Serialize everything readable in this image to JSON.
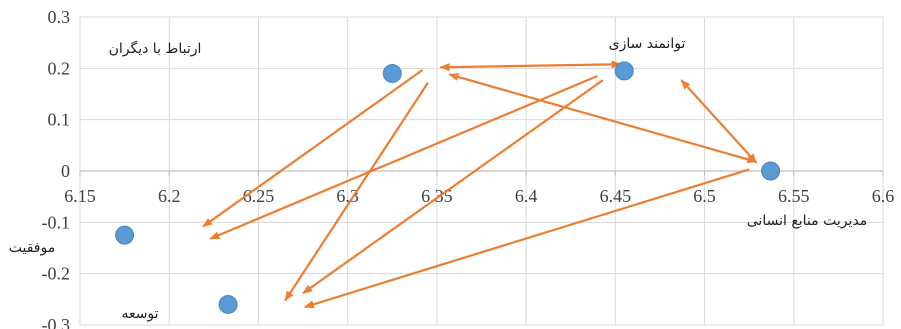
{
  "chart_data": {
    "type": "scatter",
    "title": "",
    "xlabel": "",
    "ylabel": "",
    "xlim": [
      6.15,
      6.6
    ],
    "ylim": [
      -0.3,
      0.3
    ],
    "x_ticks": [
      "6.15",
      "6.2",
      "6.25",
      "6.3",
      "6.35",
      "6.4",
      "6.45",
      "6.5",
      "6.55",
      "6.6"
    ],
    "y_ticks": [
      "0.3",
      "0.2",
      "0.1",
      "0",
      "-0.1",
      "-0.2",
      "-0.3"
    ],
    "grid": true,
    "points": [
      {
        "id": "relations",
        "label": "ارتباط با دیگران",
        "x": 6.325,
        "y": 0.19
      },
      {
        "id": "empowerment",
        "label": "توانمند سازی",
        "x": 6.455,
        "y": 0.195
      },
      {
        "id": "hrm",
        "label": "مدیریت منابع انسانی",
        "x": 6.537,
        "y": 0.0
      },
      {
        "id": "success",
        "label": "موفقیت",
        "x": 6.175,
        "y": -0.125
      },
      {
        "id": "development",
        "label": "توسعه",
        "x": 6.233,
        "y": -0.26
      }
    ],
    "arrows": [
      {
        "from": [
          6.453,
          0.208
        ],
        "to": [
          6.352,
          0.202
        ],
        "double": true
      },
      {
        "from": [
          6.487,
          0.177
        ],
        "to": [
          6.529,
          0.016
        ],
        "double": true
      },
      {
        "from": [
          6.529,
          0.018
        ],
        "to": [
          6.357,
          0.188
        ],
        "double": true
      },
      {
        "from": [
          6.342,
          0.197
        ],
        "to": [
          6.219,
          -0.108
        ],
        "double": false
      },
      {
        "from": [
          6.345,
          0.172
        ],
        "to": [
          6.265,
          -0.252
        ],
        "double": false
      },
      {
        "from": [
          6.44,
          0.185
        ],
        "to": [
          6.223,
          -0.132
        ],
        "double": false
      },
      {
        "from": [
          6.443,
          0.177
        ],
        "to": [
          6.275,
          -0.238
        ],
        "double": false
      },
      {
        "from": [
          6.525,
          0.003
        ],
        "to": [
          6.276,
          -0.265
        ],
        "double": false
      }
    ]
  },
  "colors": {
    "point": "#5B9BD5",
    "point_edge": "#4A84BD",
    "arrow": "#ED7D31",
    "grid": "#D9D9D9",
    "axis": "#BFBFBF"
  }
}
